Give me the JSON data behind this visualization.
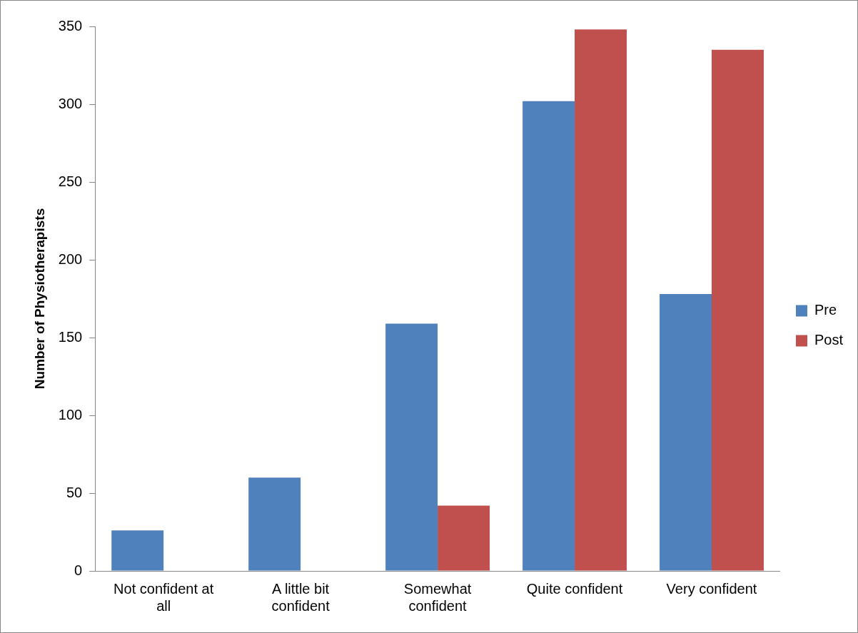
{
  "chart_data": {
    "type": "bar",
    "ylabel": "Number of Physiotherapists",
    "categories": [
      "Not confident at all",
      "A little bit confident",
      "Somewhat confident",
      "Quite confident",
      "Very confident"
    ],
    "series": [
      {
        "name": "Pre",
        "color": "#4f81bd",
        "values": [
          26,
          60,
          159,
          302,
          178
        ]
      },
      {
        "name": "Post",
        "color": "#c0504d",
        "values": [
          0,
          0,
          42,
          348,
          335
        ]
      }
    ],
    "ylim": [
      0,
      350
    ],
    "yticks": [
      0,
      50,
      100,
      150,
      200,
      250,
      300,
      350
    ],
    "grid": false,
    "legend": "right"
  }
}
